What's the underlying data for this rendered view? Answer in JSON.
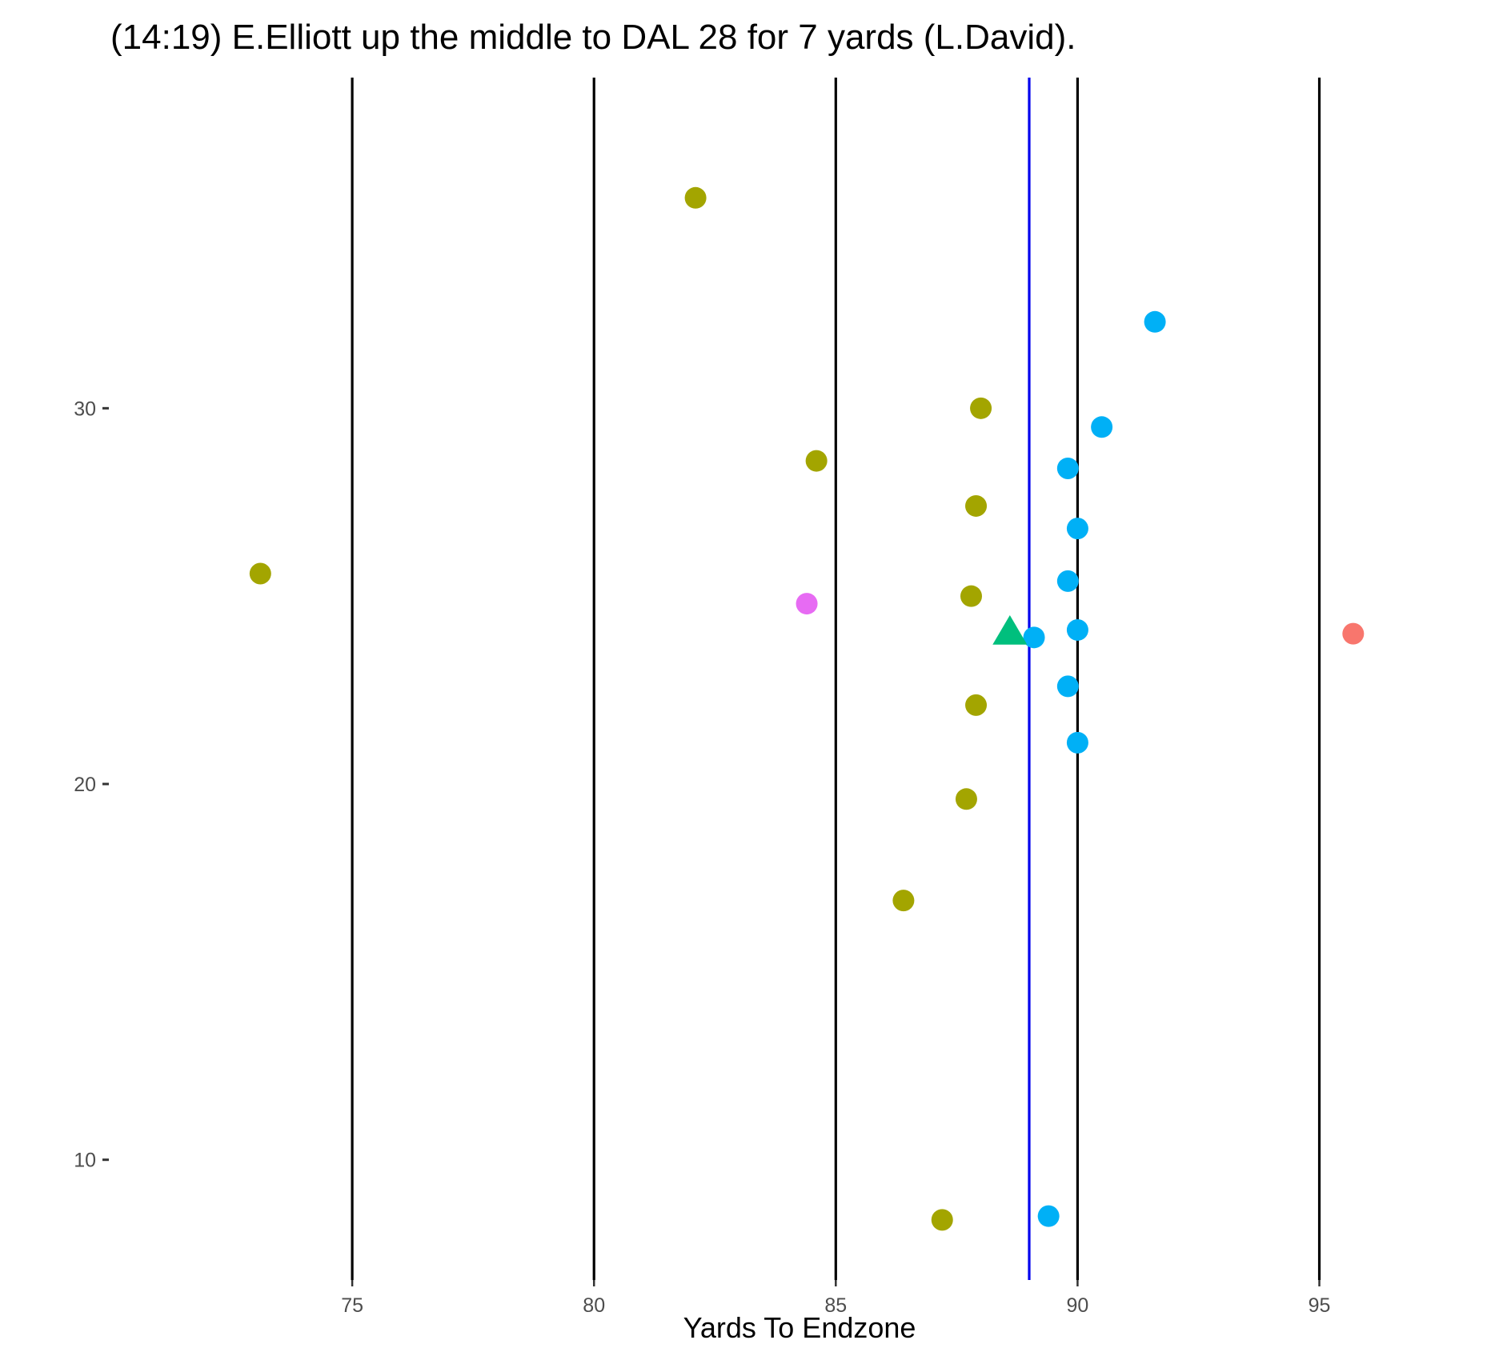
{
  "chart_data": {
    "type": "scatter",
    "title": "(14:19) E.Elliott up the middle to DAL 28 for 7 yards (L.David).",
    "xlabel": "Yards To Endzone",
    "ylabel": "",
    "xlim": [
      70,
      98.5
    ],
    "ylim": [
      6.8,
      38.8
    ],
    "x_ticks": [
      75,
      80,
      85,
      90,
      95
    ],
    "y_ticks": [
      10,
      20,
      30
    ],
    "yard_lines": [
      75,
      80,
      85,
      90,
      95
    ],
    "yard_line_color": "#000000",
    "line_of_scrimmage": 89,
    "line_of_scrimmage_color": "#0000EE",
    "grid": false,
    "legend": "none",
    "series": [
      {
        "color": "#A3A500",
        "shape": "circle",
        "points": [
          {
            "x": 82.1,
            "y": 35.6
          },
          {
            "x": 88.0,
            "y": 30.0
          },
          {
            "x": 84.6,
            "y": 28.6
          },
          {
            "x": 87.9,
            "y": 27.4
          },
          {
            "x": 73.1,
            "y": 25.6
          },
          {
            "x": 87.8,
            "y": 25.0
          },
          {
            "x": 87.9,
            "y": 22.1
          },
          {
            "x": 87.7,
            "y": 19.6
          },
          {
            "x": 86.4,
            "y": 16.9
          },
          {
            "x": 87.2,
            "y": 8.4
          }
        ]
      },
      {
        "color": "#00B0F6",
        "shape": "circle",
        "points": [
          {
            "x": 91.6,
            "y": 32.3
          },
          {
            "x": 90.5,
            "y": 29.5
          },
          {
            "x": 89.8,
            "y": 28.4
          },
          {
            "x": 90.0,
            "y": 26.8
          },
          {
            "x": 89.8,
            "y": 25.4
          },
          {
            "x": 90.0,
            "y": 24.1
          },
          {
            "x": 89.1,
            "y": 23.9
          },
          {
            "x": 89.8,
            "y": 22.6
          },
          {
            "x": 90.0,
            "y": 21.1
          },
          {
            "x": 89.4,
            "y": 8.5
          }
        ]
      },
      {
        "color": "#E76BF3",
        "shape": "circle",
        "points": [
          {
            "x": 84.4,
            "y": 24.8
          }
        ]
      },
      {
        "color": "#F8766D",
        "shape": "circle",
        "points": [
          {
            "x": 95.7,
            "y": 24.0
          }
        ]
      },
      {
        "color": "#00BF7D",
        "shape": "triangle",
        "points": [
          {
            "x": 88.6,
            "y": 24.0
          }
        ]
      }
    ]
  }
}
